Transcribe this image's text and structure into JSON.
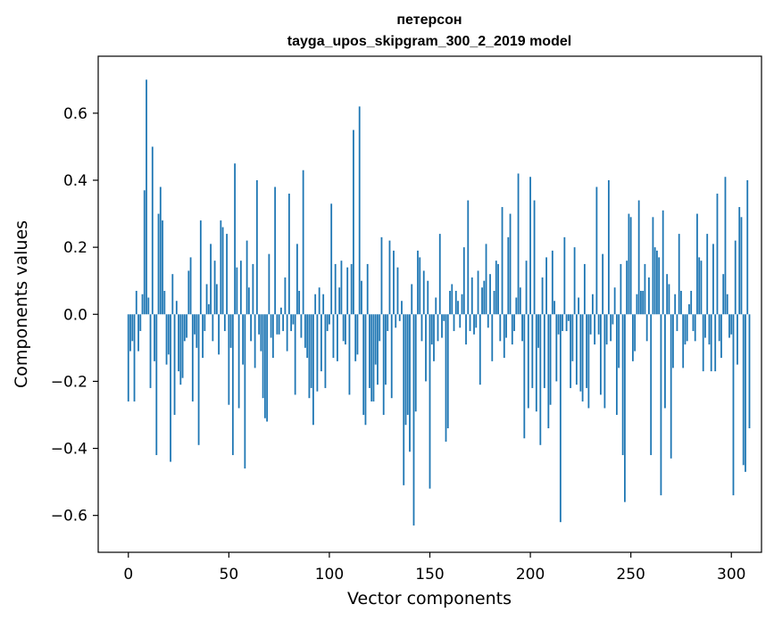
{
  "chart_data": {
    "type": "bar",
    "title_line1": "петерсон",
    "title_line2": "tayga_upos_skipgram_300_2_2019 model",
    "xlabel": "Vector components",
    "ylabel": "Components values",
    "xlim": [
      -15,
      315
    ],
    "ylim": [
      -0.71,
      0.77
    ],
    "xticks": [
      0,
      50,
      100,
      150,
      200,
      250,
      300
    ],
    "xtick_labels": [
      "0",
      "50",
      "100",
      "150",
      "200",
      "250",
      "300"
    ],
    "yticks": [
      -0.6,
      -0.4,
      -0.2,
      0.0,
      0.2,
      0.4,
      0.6
    ],
    "ytick_labels": [
      "−0.6",
      "−0.4",
      "−0.2",
      "0.0",
      "0.2",
      "0.4",
      "0.6"
    ],
    "bar_color": "#1f77b4",
    "values": [
      -0.26,
      -0.11,
      -0.08,
      -0.26,
      0.07,
      -0.11,
      -0.05,
      0.06,
      0.37,
      0.7,
      0.05,
      -0.22,
      0.5,
      -0.14,
      -0.42,
      0.3,
      0.38,
      0.28,
      0.07,
      -0.15,
      -0.12,
      -0.44,
      0.12,
      -0.3,
      0.04,
      -0.17,
      -0.21,
      -0.19,
      -0.08,
      -0.07,
      0.13,
      0.17,
      -0.26,
      -0.06,
      -0.1,
      -0.39,
      0.28,
      -0.13,
      -0.05,
      0.09,
      0.03,
      0.21,
      -0.08,
      0.16,
      0.09,
      -0.12,
      0.28,
      0.26,
      -0.05,
      0.24,
      -0.27,
      -0.1,
      -0.42,
      0.45,
      0.14,
      -0.28,
      0.16,
      -0.15,
      -0.46,
      0.22,
      0.08,
      -0.08,
      0.15,
      -0.16,
      0.4,
      -0.06,
      -0.11,
      -0.25,
      -0.31,
      -0.32,
      0.18,
      -0.07,
      -0.13,
      0.38,
      -0.06,
      -0.06,
      0.02,
      -0.05,
      0.11,
      -0.11,
      0.36,
      -0.05,
      -0.03,
      -0.24,
      0.21,
      0.07,
      -0.07,
      0.43,
      -0.1,
      -0.13,
      -0.25,
      -0.22,
      -0.33,
      0.06,
      -0.23,
      0.08,
      -0.17,
      0.06,
      -0.22,
      -0.05,
      -0.03,
      0.33,
      -0.13,
      0.15,
      -0.14,
      0.08,
      0.16,
      -0.08,
      -0.09,
      0.14,
      -0.24,
      0.15,
      0.55,
      -0.14,
      -0.12,
      0.62,
      0.1,
      -0.3,
      -0.33,
      0.15,
      -0.22,
      -0.26,
      -0.26,
      -0.15,
      -0.21,
      -0.08,
      0.23,
      -0.3,
      -0.21,
      -0.05,
      0.22,
      -0.25,
      0.19,
      -0.04,
      0.14,
      -0.02,
      0.04,
      -0.51,
      -0.33,
      -0.3,
      -0.41,
      0.09,
      -0.63,
      -0.29,
      0.19,
      0.17,
      -0.08,
      0.13,
      -0.2,
      0.1,
      -0.52,
      -0.09,
      -0.14,
      0.05,
      -0.08,
      0.24,
      -0.07,
      -0.02,
      -0.38,
      -0.34,
      0.07,
      0.09,
      -0.05,
      0.07,
      0.04,
      -0.04,
      0.06,
      0.2,
      -0.09,
      0.34,
      -0.05,
      0.11,
      -0.06,
      -0.04,
      0.13,
      -0.21,
      0.08,
      0.1,
      0.21,
      -0.04,
      0.12,
      -0.14,
      0.07,
      0.16,
      0.15,
      -0.08,
      0.32,
      -0.13,
      -0.07,
      0.23,
      0.3,
      -0.09,
      -0.05,
      0.05,
      0.42,
      0.08,
      -0.08,
      -0.37,
      0.16,
      -0.28,
      0.41,
      -0.22,
      0.34,
      -0.29,
      -0.1,
      -0.39,
      0.11,
      -0.22,
      0.17,
      -0.34,
      -0.27,
      0.19,
      0.04,
      -0.2,
      -0.06,
      -0.62,
      -0.05,
      0.23,
      -0.05,
      -0.02,
      -0.22,
      -0.14,
      0.2,
      -0.21,
      0.05,
      -0.23,
      -0.26,
      0.15,
      -0.22,
      -0.28,
      -0.06,
      0.06,
      -0.09,
      0.38,
      -0.06,
      -0.24,
      0.18,
      -0.28,
      -0.09,
      0.4,
      -0.08,
      -0.03,
      0.08,
      -0.3,
      -0.16,
      0.15,
      -0.42,
      -0.56,
      0.16,
      0.3,
      0.29,
      -0.14,
      -0.11,
      0.06,
      0.34,
      0.07,
      0.07,
      0.15,
      -0.08,
      0.11,
      -0.42,
      0.29,
      0.2,
      0.19,
      0.17,
      -0.54,
      0.31,
      -0.28,
      0.12,
      0.09,
      -0.43,
      -0.16,
      0.06,
      -0.05,
      0.24,
      0.07,
      -0.16,
      -0.09,
      -0.08,
      0.03,
      0.07,
      -0.05,
      -0.08,
      0.3,
      0.17,
      0.16,
      -0.17,
      -0.07,
      0.24,
      -0.09,
      -0.17,
      0.21,
      -0.17,
      0.36,
      -0.08,
      -0.13,
      0.12,
      0.41,
      0.06,
      -0.07,
      -0.06,
      -0.54,
      0.22,
      -0.15,
      0.32,
      0.29,
      -0.45,
      -0.47,
      0.4,
      -0.34
    ]
  }
}
